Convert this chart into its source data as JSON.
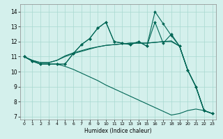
{
  "title": "",
  "xlabel": "Humidex (Indice chaleur)",
  "xlim": [
    -0.5,
    23.5
  ],
  "ylim": [
    6.8,
    14.5
  ],
  "yticks": [
    7,
    8,
    9,
    10,
    11,
    12,
    13,
    14
  ],
  "xticks": [
    0,
    1,
    2,
    3,
    4,
    5,
    6,
    7,
    8,
    9,
    10,
    11,
    12,
    13,
    14,
    15,
    16,
    17,
    18,
    19,
    20,
    21,
    22,
    23
  ],
  "bg_color": "#d4f0ec",
  "grid_color": "#a8d8d0",
  "line_color": "#006655",
  "lines": [
    {
      "y": [
        11.0,
        10.7,
        10.5,
        10.5,
        10.5,
        10.5,
        11.2,
        11.8,
        12.2,
        12.9,
        13.3,
        12.0,
        11.9,
        11.8,
        12.0,
        11.7,
        13.3,
        11.9,
        12.5,
        11.7,
        10.1,
        9.0,
        7.4,
        7.2
      ],
      "marker": true
    },
    {
      "y": [
        11.0,
        10.7,
        10.5,
        10.5,
        10.5,
        10.5,
        11.2,
        11.8,
        12.2,
        12.9,
        13.3,
        12.0,
        11.9,
        11.8,
        12.0,
        11.7,
        14.0,
        13.2,
        12.4,
        11.7,
        10.1,
        9.0,
        7.4,
        7.2
      ],
      "marker": true
    },
    {
      "y": [
        11.0,
        10.75,
        10.6,
        10.6,
        10.75,
        11.0,
        11.2,
        11.35,
        11.5,
        11.65,
        11.75,
        11.8,
        11.85,
        11.9,
        11.9,
        11.9,
        11.95,
        12.0,
        12.0,
        11.7,
        10.1,
        9.0,
        7.4,
        7.2
      ],
      "marker": false
    },
    {
      "y": [
        11.0,
        10.75,
        10.6,
        10.6,
        10.75,
        11.05,
        11.25,
        11.4,
        11.55,
        11.65,
        11.75,
        11.8,
        11.85,
        11.9,
        11.9,
        11.9,
        11.95,
        12.0,
        12.05,
        11.7,
        10.1,
        9.0,
        7.4,
        7.2
      ],
      "marker": false
    },
    {
      "y": [
        11.0,
        10.7,
        10.5,
        10.5,
        10.5,
        10.35,
        10.15,
        9.9,
        9.65,
        9.4,
        9.1,
        8.85,
        8.6,
        8.35,
        8.1,
        7.85,
        7.6,
        7.35,
        7.1,
        7.2,
        7.4,
        7.5,
        7.4,
        7.2
      ],
      "marker": false
    }
  ]
}
